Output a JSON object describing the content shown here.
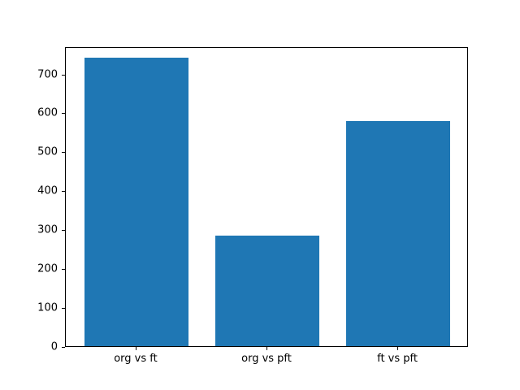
{
  "chart_data": {
    "type": "bar",
    "title": "",
    "xlabel": "",
    "ylabel": "",
    "categories": [
      "org vs ft",
      "org vs pft",
      "ft vs pft"
    ],
    "values": [
      740,
      283,
      578
    ],
    "ylim": [
      0,
      770
    ],
    "yticks": [
      0,
      100,
      200,
      300,
      400,
      500,
      600,
      700
    ],
    "bar_color": "#1f77b4",
    "background_color": "#ffffff",
    "axis_color": "#000000",
    "grid": false,
    "legend": "none"
  }
}
